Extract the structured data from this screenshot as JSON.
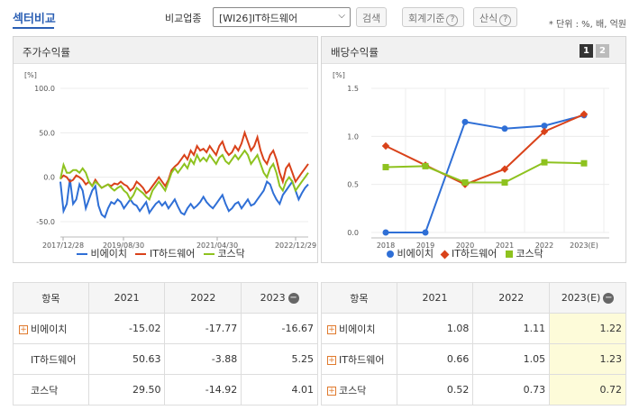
{
  "header": {
    "title": "섹터비교",
    "compare_label": "비교업종",
    "select_value": "[WI26]IT하드웨어",
    "search_label": "검색",
    "accounting_label": "회계기준",
    "calc_label": "산식",
    "unit_label": "* 단위 : %, 배, 억원"
  },
  "left_panel": {
    "title": "주가수익률",
    "unit": "[%]",
    "legend": [
      "비에이치",
      "IT하드웨어",
      "코스닥"
    ]
  },
  "right_panel": {
    "title": "배당수익률",
    "unit": "[%]",
    "page1": "1",
    "page2": "2",
    "legend": [
      "비에이치",
      "IT하드웨어",
      "코스닥"
    ]
  },
  "colors": {
    "bh": "#2f6fd6",
    "it": "#d9421a",
    "kosdaq": "#8ec21f",
    "accent": "#2b5fb4"
  },
  "chart_data": [
    {
      "type": "line",
      "title": "주가수익률",
      "ylim": [
        -50,
        100
      ],
      "yticks": [
        "100.0",
        "50.0",
        "0.0",
        "-50.0"
      ],
      "xticks": [
        "2017/12/28",
        "2019/08/30",
        "2021/04/30",
        "2022/12/29"
      ],
      "series": [
        {
          "name": "비에이치",
          "values": [
            -5,
            -38,
            -30,
            -2,
            -30,
            -25,
            -8,
            -15,
            -35,
            -25,
            -15,
            -10,
            -32,
            -42,
            -45,
            -35,
            -28,
            -30,
            -25,
            -28,
            -35,
            -30,
            -25,
            -30,
            -32,
            -38,
            -33,
            -28,
            -40,
            -35,
            -30,
            -27,
            -32,
            -28,
            -35,
            -30,
            -25,
            -33,
            -40,
            -42,
            -35,
            -30,
            -35,
            -32,
            -28,
            -22,
            -28,
            -32,
            -35,
            -30,
            -25,
            -20,
            -30,
            -38,
            -35,
            -30,
            -28,
            -35,
            -30,
            -25,
            -32,
            -30,
            -25,
            -20,
            -15,
            -5,
            -8,
            -18,
            -25,
            -30,
            -20,
            -15,
            -10,
            -5,
            -15,
            -25,
            -18,
            -12,
            -8
          ]
        },
        {
          "name": "IT하드웨어",
          "values": [
            -2,
            2,
            0,
            -5,
            -3,
            2,
            0,
            -3,
            -8,
            -5,
            -10,
            -3,
            -8,
            -12,
            -10,
            -8,
            -10,
            -7,
            -8,
            -5,
            -8,
            -10,
            -15,
            -12,
            -5,
            -8,
            -12,
            -18,
            -15,
            -10,
            -5,
            0,
            -5,
            -10,
            -3,
            8,
            12,
            15,
            20,
            25,
            20,
            30,
            25,
            35,
            30,
            32,
            28,
            35,
            30,
            25,
            35,
            40,
            30,
            25,
            28,
            35,
            30,
            38,
            50,
            40,
            30,
            35,
            45,
            30,
            20,
            15,
            25,
            30,
            20,
            5,
            -5,
            10,
            15,
            5,
            -5,
            0,
            5,
            10,
            15
          ]
        },
        {
          "name": "코스닥",
          "values": [
            -2,
            14,
            5,
            5,
            8,
            8,
            5,
            10,
            5,
            -5,
            -10,
            -5,
            -8,
            -12,
            -10,
            -8,
            -12,
            -15,
            -12,
            -10,
            -15,
            -18,
            -25,
            -20,
            -12,
            -15,
            -18,
            -22,
            -25,
            -15,
            -10,
            -5,
            -10,
            -15,
            -5,
            5,
            10,
            5,
            10,
            15,
            10,
            20,
            15,
            25,
            18,
            22,
            18,
            25,
            20,
            15,
            22,
            25,
            18,
            15,
            20,
            25,
            20,
            25,
            30,
            25,
            15,
            20,
            25,
            15,
            5,
            0,
            10,
            15,
            5,
            -10,
            -15,
            -5,
            0,
            -5,
            -15,
            -10,
            -5,
            0,
            5
          ]
        }
      ]
    },
    {
      "type": "line",
      "title": "배당수익률",
      "ylim": [
        0,
        1.5
      ],
      "yticks": [
        "1.5",
        "1.0",
        "0.5",
        "0.0"
      ],
      "categories": [
        "2018",
        "2019",
        "2020",
        "2021",
        "2022",
        "2023(E)"
      ],
      "series": [
        {
          "name": "비에이치",
          "values": [
            0.0,
            0.0,
            1.15,
            1.08,
            1.11,
            1.22
          ]
        },
        {
          "name": "IT하드웨어",
          "values": [
            0.9,
            0.7,
            0.5,
            0.66,
            1.05,
            1.23
          ]
        },
        {
          "name": "코스닥",
          "values": [
            0.68,
            0.69,
            0.52,
            0.52,
            0.73,
            0.72
          ]
        }
      ]
    }
  ],
  "left_table": {
    "headers": [
      "항목",
      "2021",
      "2022",
      "2023"
    ],
    "rows": [
      {
        "name": "비에이치",
        "v": [
          "-15.02",
          "-17.77",
          "-16.67"
        ],
        "plus": true
      },
      {
        "name": "IT하드웨어",
        "v": [
          "50.63",
          "-3.88",
          "5.25"
        ],
        "plus": false
      },
      {
        "name": "코스닥",
        "v": [
          "29.50",
          "-14.92",
          "4.01"
        ],
        "plus": false
      }
    ]
  },
  "right_table": {
    "headers": [
      "항목",
      "2021",
      "2022",
      "2023(E)"
    ],
    "rows": [
      {
        "name": "비에이치",
        "v": [
          "1.08",
          "1.11",
          "1.22"
        ],
        "plus": true
      },
      {
        "name": "IT하드웨어",
        "v": [
          "0.66",
          "1.05",
          "1.23"
        ],
        "plus": true
      },
      {
        "name": "코스닥",
        "v": [
          "0.52",
          "0.73",
          "0.72"
        ],
        "plus": true
      }
    ]
  }
}
